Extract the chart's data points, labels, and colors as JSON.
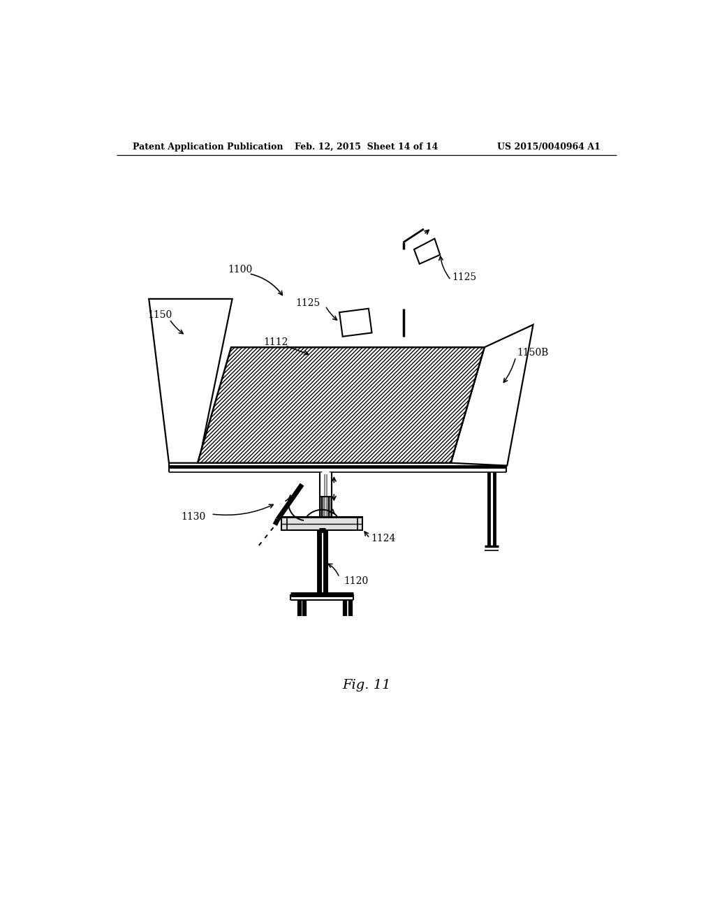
{
  "background_color": "#ffffff",
  "header_left": "Patent Application Publication",
  "header_center": "Feb. 12, 2015  Sheet 14 of 14",
  "header_right": "US 2015/0040964 A1",
  "figure_label": "Fig. 11",
  "line_color": "#000000",
  "font_size_header": 9,
  "font_size_label": 10,
  "font_size_fig": 13
}
